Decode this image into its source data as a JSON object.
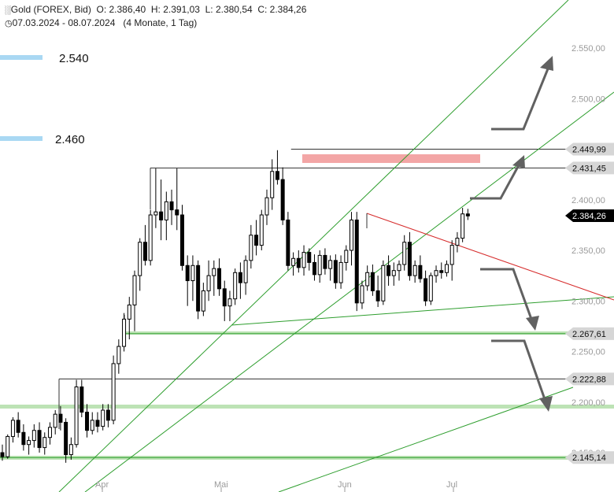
{
  "header": {
    "instrument_icon": "chart-candles-icon",
    "instrument": "Gold (FOREX, Bid)",
    "open": "O: 2.386,40",
    "high": "H: 2.391,03",
    "low": "L: 2.380,54",
    "close": "C: 2.384,26",
    "period_icon": "clock-icon",
    "date_range": "07.03.2024 - 08.07.2024",
    "interval": "(4 Monate, 1 Tag)"
  },
  "colors": {
    "candle": "#000000",
    "support_line": "#2e9e2e",
    "support_band": "#bde3b5",
    "target_band": "#a9d8f3",
    "resistance_zone": "#f3a6a6",
    "trend_red": "#d62b2b",
    "arrow": "#616161",
    "tag_bg": "#666666",
    "current_tag_bg": "#000000"
  },
  "chart_data": {
    "type": "candlestick",
    "x_months": [
      "Apr",
      "Mai",
      "Jun",
      "Jul"
    ],
    "y_ticks": [
      {
        "value": 2550,
        "label": "2.550,00"
      },
      {
        "value": 2500,
        "label": "2.500,00"
      },
      {
        "value": 2400,
        "label": "2.400,00"
      },
      {
        "value": 2350,
        "label": "2.350,00"
      },
      {
        "value": 2300,
        "label": "2.300,00"
      },
      {
        "value": 2250,
        "label": "2.250,00"
      },
      {
        "value": 2200,
        "label": "2.200,00"
      },
      {
        "value": 2150,
        "label": "2.150,00"
      }
    ],
    "ylim": [
      2115,
      2580
    ],
    "price_levels": [
      {
        "value": 2449.99,
        "label": "2.449,99",
        "kind": "resistance"
      },
      {
        "value": 2431.45,
        "label": "2.431,45",
        "kind": "resistance"
      },
      {
        "value": 2267.61,
        "label": "2.267,61",
        "kind": "support"
      },
      {
        "value": 2222.88,
        "label": "2.222,88",
        "kind": "support"
      },
      {
        "value": 2145.14,
        "label": "2.145,14",
        "kind": "support"
      }
    ],
    "current_price": {
      "value": 2384.26,
      "label": "2.384,26"
    },
    "targets": [
      {
        "value": 2540,
        "label": "2.540"
      },
      {
        "value": 2460,
        "label": "2.460"
      }
    ],
    "ohlc": [
      [
        2150,
        2158,
        2142,
        2146
      ],
      [
        2146,
        2168,
        2144,
        2166
      ],
      [
        2166,
        2185,
        2160,
        2182
      ],
      [
        2182,
        2190,
        2165,
        2170
      ],
      [
        2170,
        2178,
        2152,
        2158
      ],
      [
        2158,
        2166,
        2148,
        2162
      ],
      [
        2162,
        2178,
        2155,
        2172
      ],
      [
        2172,
        2180,
        2150,
        2155
      ],
      [
        2155,
        2170,
        2148,
        2165
      ],
      [
        2165,
        2180,
        2158,
        2175
      ],
      [
        2175,
        2192,
        2168,
        2188
      ],
      [
        2188,
        2196,
        2172,
        2180
      ],
      [
        2180,
        2184,
        2140,
        2148
      ],
      [
        2148,
        2165,
        2143,
        2158
      ],
      [
        2158,
        2222,
        2155,
        2215
      ],
      [
        2215,
        2222,
        2185,
        2190
      ],
      [
        2190,
        2198,
        2165,
        2172
      ],
      [
        2172,
        2190,
        2168,
        2182
      ],
      [
        2182,
        2190,
        2170,
        2176
      ],
      [
        2176,
        2198,
        2172,
        2192
      ],
      [
        2192,
        2198,
        2175,
        2182
      ],
      [
        2182,
        2246,
        2178,
        2238
      ],
      [
        2238,
        2262,
        2228,
        2255
      ],
      [
        2255,
        2288,
        2250,
        2282
      ],
      [
        2282,
        2304,
        2262,
        2296
      ],
      [
        2296,
        2330,
        2270,
        2325
      ],
      [
        2325,
        2362,
        2310,
        2358
      ],
      [
        2358,
        2375,
        2335,
        2340
      ],
      [
        2340,
        2390,
        2335,
        2385
      ],
      [
        2385,
        2431,
        2372,
        2388
      ],
      [
        2388,
        2420,
        2360,
        2380
      ],
      [
        2380,
        2408,
        2360,
        2398
      ],
      [
        2398,
        2410,
        2375,
        2390
      ],
      [
        2390,
        2431,
        2370,
        2385
      ],
      [
        2385,
        2395,
        2330,
        2335
      ],
      [
        2335,
        2345,
        2295,
        2320
      ],
      [
        2320,
        2345,
        2300,
        2335
      ],
      [
        2335,
        2340,
        2282,
        2290
      ],
      [
        2290,
        2318,
        2285,
        2310
      ],
      [
        2310,
        2340,
        2300,
        2325
      ],
      [
        2325,
        2340,
        2305,
        2332
      ],
      [
        2332,
        2342,
        2305,
        2312
      ],
      [
        2312,
        2320,
        2280,
        2295
      ],
      [
        2295,
        2310,
        2280,
        2302
      ],
      [
        2302,
        2332,
        2296,
        2328
      ],
      [
        2328,
        2338,
        2302,
        2318
      ],
      [
        2318,
        2345,
        2306,
        2340
      ],
      [
        2340,
        2375,
        2332,
        2365
      ],
      [
        2365,
        2380,
        2345,
        2355
      ],
      [
        2355,
        2390,
        2350,
        2385
      ],
      [
        2385,
        2410,
        2375,
        2402
      ],
      [
        2402,
        2440,
        2390,
        2428
      ],
      [
        2428,
        2449,
        2415,
        2420
      ],
      [
        2420,
        2432,
        2375,
        2380
      ],
      [
        2380,
        2388,
        2330,
        2335
      ],
      [
        2335,
        2348,
        2325,
        2342
      ],
      [
        2342,
        2350,
        2328,
        2333
      ],
      [
        2333,
        2355,
        2325,
        2348
      ],
      [
        2348,
        2352,
        2330,
        2338
      ],
      [
        2338,
        2346,
        2320,
        2326
      ],
      [
        2326,
        2350,
        2318,
        2345
      ],
      [
        2345,
        2352,
        2326,
        2332
      ],
      [
        2332,
        2345,
        2320,
        2340
      ],
      [
        2340,
        2346,
        2312,
        2318
      ],
      [
        2318,
        2345,
        2312,
        2338
      ],
      [
        2338,
        2355,
        2330,
        2350
      ],
      [
        2350,
        2388,
        2335,
        2380
      ],
      [
        2380,
        2388,
        2290,
        2298
      ],
      [
        2298,
        2320,
        2292,
        2315
      ],
      [
        2315,
        2335,
        2310,
        2328
      ],
      [
        2328,
        2336,
        2305,
        2310
      ],
      [
        2310,
        2325,
        2294,
        2300
      ],
      [
        2300,
        2340,
        2296,
        2335
      ],
      [
        2335,
        2345,
        2315,
        2325
      ],
      [
        2325,
        2338,
        2315,
        2330
      ],
      [
        2330,
        2340,
        2320,
        2336
      ],
      [
        2336,
        2365,
        2330,
        2358
      ],
      [
        2358,
        2368,
        2320,
        2325
      ],
      [
        2325,
        2340,
        2318,
        2335
      ],
      [
        2335,
        2345,
        2318,
        2322
      ],
      [
        2322,
        2330,
        2295,
        2300
      ],
      [
        2300,
        2328,
        2296,
        2325
      ],
      [
        2325,
        2335,
        2318,
        2330
      ],
      [
        2330,
        2338,
        2322,
        2328
      ],
      [
        2328,
        2340,
        2324,
        2336
      ],
      [
        2336,
        2360,
        2320,
        2355
      ],
      [
        2355,
        2368,
        2348,
        2362
      ],
      [
        2362,
        2392,
        2358,
        2386
      ],
      [
        2386,
        2391,
        2380,
        2384
      ]
    ]
  }
}
